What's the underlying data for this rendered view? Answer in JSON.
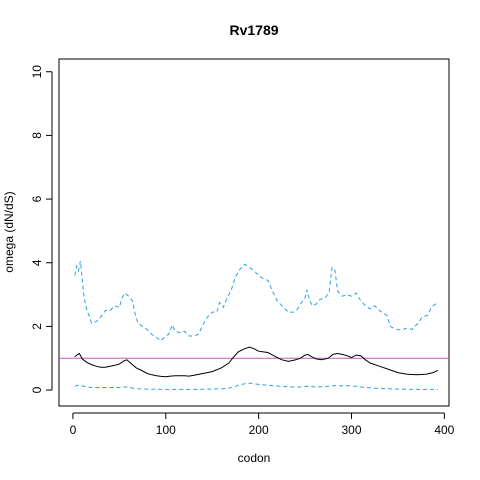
{
  "chart_data": {
    "type": "line",
    "title": "Rv1789",
    "xlabel": "codon",
    "ylabel": "omega (dN/dS)",
    "xlim": [
      -15,
      405
    ],
    "ylim": [
      -0.5,
      10.4
    ],
    "xticks": [
      0,
      100,
      200,
      300,
      400
    ],
    "yticks": [
      0,
      2,
      4,
      6,
      8,
      10
    ],
    "reference_line": {
      "y": 1,
      "color": "#c05bc0"
    },
    "series": [
      {
        "style": "solid",
        "color": "#000000",
        "points": [
          [
            2,
            1.05
          ],
          [
            5,
            1.12
          ],
          [
            7,
            1.15
          ],
          [
            10,
            0.98
          ],
          [
            15,
            0.87
          ],
          [
            20,
            0.8
          ],
          [
            25,
            0.75
          ],
          [
            30,
            0.72
          ],
          [
            35,
            0.72
          ],
          [
            40,
            0.75
          ],
          [
            45,
            0.78
          ],
          [
            50,
            0.82
          ],
          [
            55,
            0.92
          ],
          [
            58,
            0.95
          ],
          [
            62,
            0.85
          ],
          [
            68,
            0.7
          ],
          [
            75,
            0.6
          ],
          [
            80,
            0.52
          ],
          [
            85,
            0.48
          ],
          [
            90,
            0.45
          ],
          [
            95,
            0.43
          ],
          [
            100,
            0.42
          ],
          [
            105,
            0.44
          ],
          [
            110,
            0.45
          ],
          [
            120,
            0.45
          ],
          [
            125,
            0.44
          ],
          [
            130,
            0.46
          ],
          [
            140,
            0.52
          ],
          [
            150,
            0.58
          ],
          [
            160,
            0.7
          ],
          [
            168,
            0.85
          ],
          [
            172,
            1.0
          ],
          [
            178,
            1.2
          ],
          [
            185,
            1.3
          ],
          [
            190,
            1.35
          ],
          [
            195,
            1.3
          ],
          [
            200,
            1.22
          ],
          [
            205,
            1.2
          ],
          [
            210,
            1.18
          ],
          [
            215,
            1.1
          ],
          [
            220,
            1.02
          ],
          [
            225,
            0.95
          ],
          [
            232,
            0.9
          ],
          [
            240,
            0.95
          ],
          [
            245,
            1.0
          ],
          [
            250,
            1.1
          ],
          [
            253,
            1.12
          ],
          [
            257,
            1.05
          ],
          [
            262,
            0.98
          ],
          [
            268,
            0.95
          ],
          [
            275,
            1.0
          ],
          [
            280,
            1.12
          ],
          [
            285,
            1.15
          ],
          [
            290,
            1.12
          ],
          [
            295,
            1.08
          ],
          [
            300,
            1.02
          ],
          [
            305,
            1.1
          ],
          [
            310,
            1.08
          ],
          [
            315,
            0.95
          ],
          [
            320,
            0.85
          ],
          [
            330,
            0.75
          ],
          [
            340,
            0.65
          ],
          [
            350,
            0.55
          ],
          [
            360,
            0.5
          ],
          [
            370,
            0.48
          ],
          [
            380,
            0.5
          ],
          [
            388,
            0.55
          ],
          [
            393,
            0.62
          ]
        ]
      },
      {
        "style": "dashed",
        "color": "#29a3e0",
        "points": [
          [
            2,
            3.6
          ],
          [
            4,
            3.9
          ],
          [
            6,
            3.75
          ],
          [
            8,
            4.05
          ],
          [
            10,
            3.5
          ],
          [
            12,
            2.9
          ],
          [
            15,
            2.5
          ],
          [
            18,
            2.3
          ],
          [
            20,
            2.1
          ],
          [
            25,
            2.15
          ],
          [
            30,
            2.3
          ],
          [
            35,
            2.5
          ],
          [
            40,
            2.5
          ],
          [
            45,
            2.65
          ],
          [
            50,
            2.6
          ],
          [
            53,
            2.9
          ],
          [
            56,
            3.05
          ],
          [
            60,
            2.95
          ],
          [
            64,
            2.8
          ],
          [
            67,
            2.4
          ],
          [
            70,
            2.1
          ],
          [
            75,
            2.0
          ],
          [
            80,
            1.9
          ],
          [
            85,
            1.75
          ],
          [
            90,
            1.65
          ],
          [
            95,
            1.55
          ],
          [
            100,
            1.7
          ],
          [
            103,
            1.75
          ],
          [
            107,
            2.05
          ],
          [
            110,
            1.85
          ],
          [
            115,
            1.8
          ],
          [
            120,
            1.85
          ],
          [
            125,
            1.7
          ],
          [
            130,
            1.7
          ],
          [
            135,
            1.75
          ],
          [
            140,
            2.05
          ],
          [
            145,
            2.3
          ],
          [
            150,
            2.45
          ],
          [
            155,
            2.45
          ],
          [
            158,
            2.75
          ],
          [
            162,
            2.6
          ],
          [
            166,
            2.9
          ],
          [
            170,
            3.1
          ],
          [
            175,
            3.55
          ],
          [
            180,
            3.8
          ],
          [
            185,
            3.95
          ],
          [
            190,
            3.85
          ],
          [
            195,
            3.75
          ],
          [
            200,
            3.6
          ],
          [
            205,
            3.5
          ],
          [
            210,
            3.45
          ],
          [
            215,
            3.1
          ],
          [
            220,
            2.8
          ],
          [
            225,
            2.65
          ],
          [
            232,
            2.45
          ],
          [
            238,
            2.45
          ],
          [
            242,
            2.55
          ],
          [
            246,
            2.75
          ],
          [
            250,
            2.9
          ],
          [
            252,
            3.15
          ],
          [
            255,
            2.8
          ],
          [
            258,
            2.65
          ],
          [
            262,
            2.7
          ],
          [
            266,
            2.85
          ],
          [
            272,
            2.9
          ],
          [
            276,
            3.1
          ],
          [
            279,
            3.85
          ],
          [
            282,
            3.8
          ],
          [
            285,
            3.1
          ],
          [
            290,
            2.95
          ],
          [
            295,
            3.0
          ],
          [
            300,
            2.95
          ],
          [
            305,
            3.05
          ],
          [
            310,
            2.8
          ],
          [
            315,
            2.65
          ],
          [
            320,
            2.55
          ],
          [
            325,
            2.65
          ],
          [
            330,
            2.5
          ],
          [
            335,
            2.4
          ],
          [
            338,
            2.35
          ],
          [
            342,
            2.0
          ],
          [
            345,
            1.95
          ],
          [
            350,
            1.9
          ],
          [
            355,
            1.9
          ],
          [
            360,
            1.95
          ],
          [
            365,
            1.9
          ],
          [
            368,
            2.0
          ],
          [
            372,
            2.1
          ],
          [
            376,
            2.3
          ],
          [
            382,
            2.35
          ],
          [
            386,
            2.6
          ],
          [
            390,
            2.7
          ],
          [
            393,
            2.7
          ]
        ]
      },
      {
        "style": "dashed",
        "color": "#29a3e0",
        "points": [
          [
            2,
            0.12
          ],
          [
            5,
            0.15
          ],
          [
            10,
            0.13
          ],
          [
            15,
            0.1
          ],
          [
            20,
            0.08
          ],
          [
            30,
            0.08
          ],
          [
            40,
            0.08
          ],
          [
            50,
            0.08
          ],
          [
            55,
            0.1
          ],
          [
            60,
            0.09
          ],
          [
            65,
            0.06
          ],
          [
            70,
            0.04
          ],
          [
            80,
            0.03
          ],
          [
            100,
            0.02
          ],
          [
            130,
            0.02
          ],
          [
            150,
            0.03
          ],
          [
            165,
            0.05
          ],
          [
            172,
            0.08
          ],
          [
            178,
            0.15
          ],
          [
            185,
            0.2
          ],
          [
            190,
            0.22
          ],
          [
            200,
            0.18
          ],
          [
            210,
            0.15
          ],
          [
            225,
            0.12
          ],
          [
            240,
            0.09
          ],
          [
            252,
            0.12
          ],
          [
            260,
            0.1
          ],
          [
            270,
            0.1
          ],
          [
            280,
            0.14
          ],
          [
            285,
            0.13
          ],
          [
            295,
            0.14
          ],
          [
            305,
            0.12
          ],
          [
            315,
            0.08
          ],
          [
            330,
            0.05
          ],
          [
            350,
            0.03
          ],
          [
            370,
            0.02
          ],
          [
            393,
            0.02
          ]
        ]
      }
    ]
  }
}
